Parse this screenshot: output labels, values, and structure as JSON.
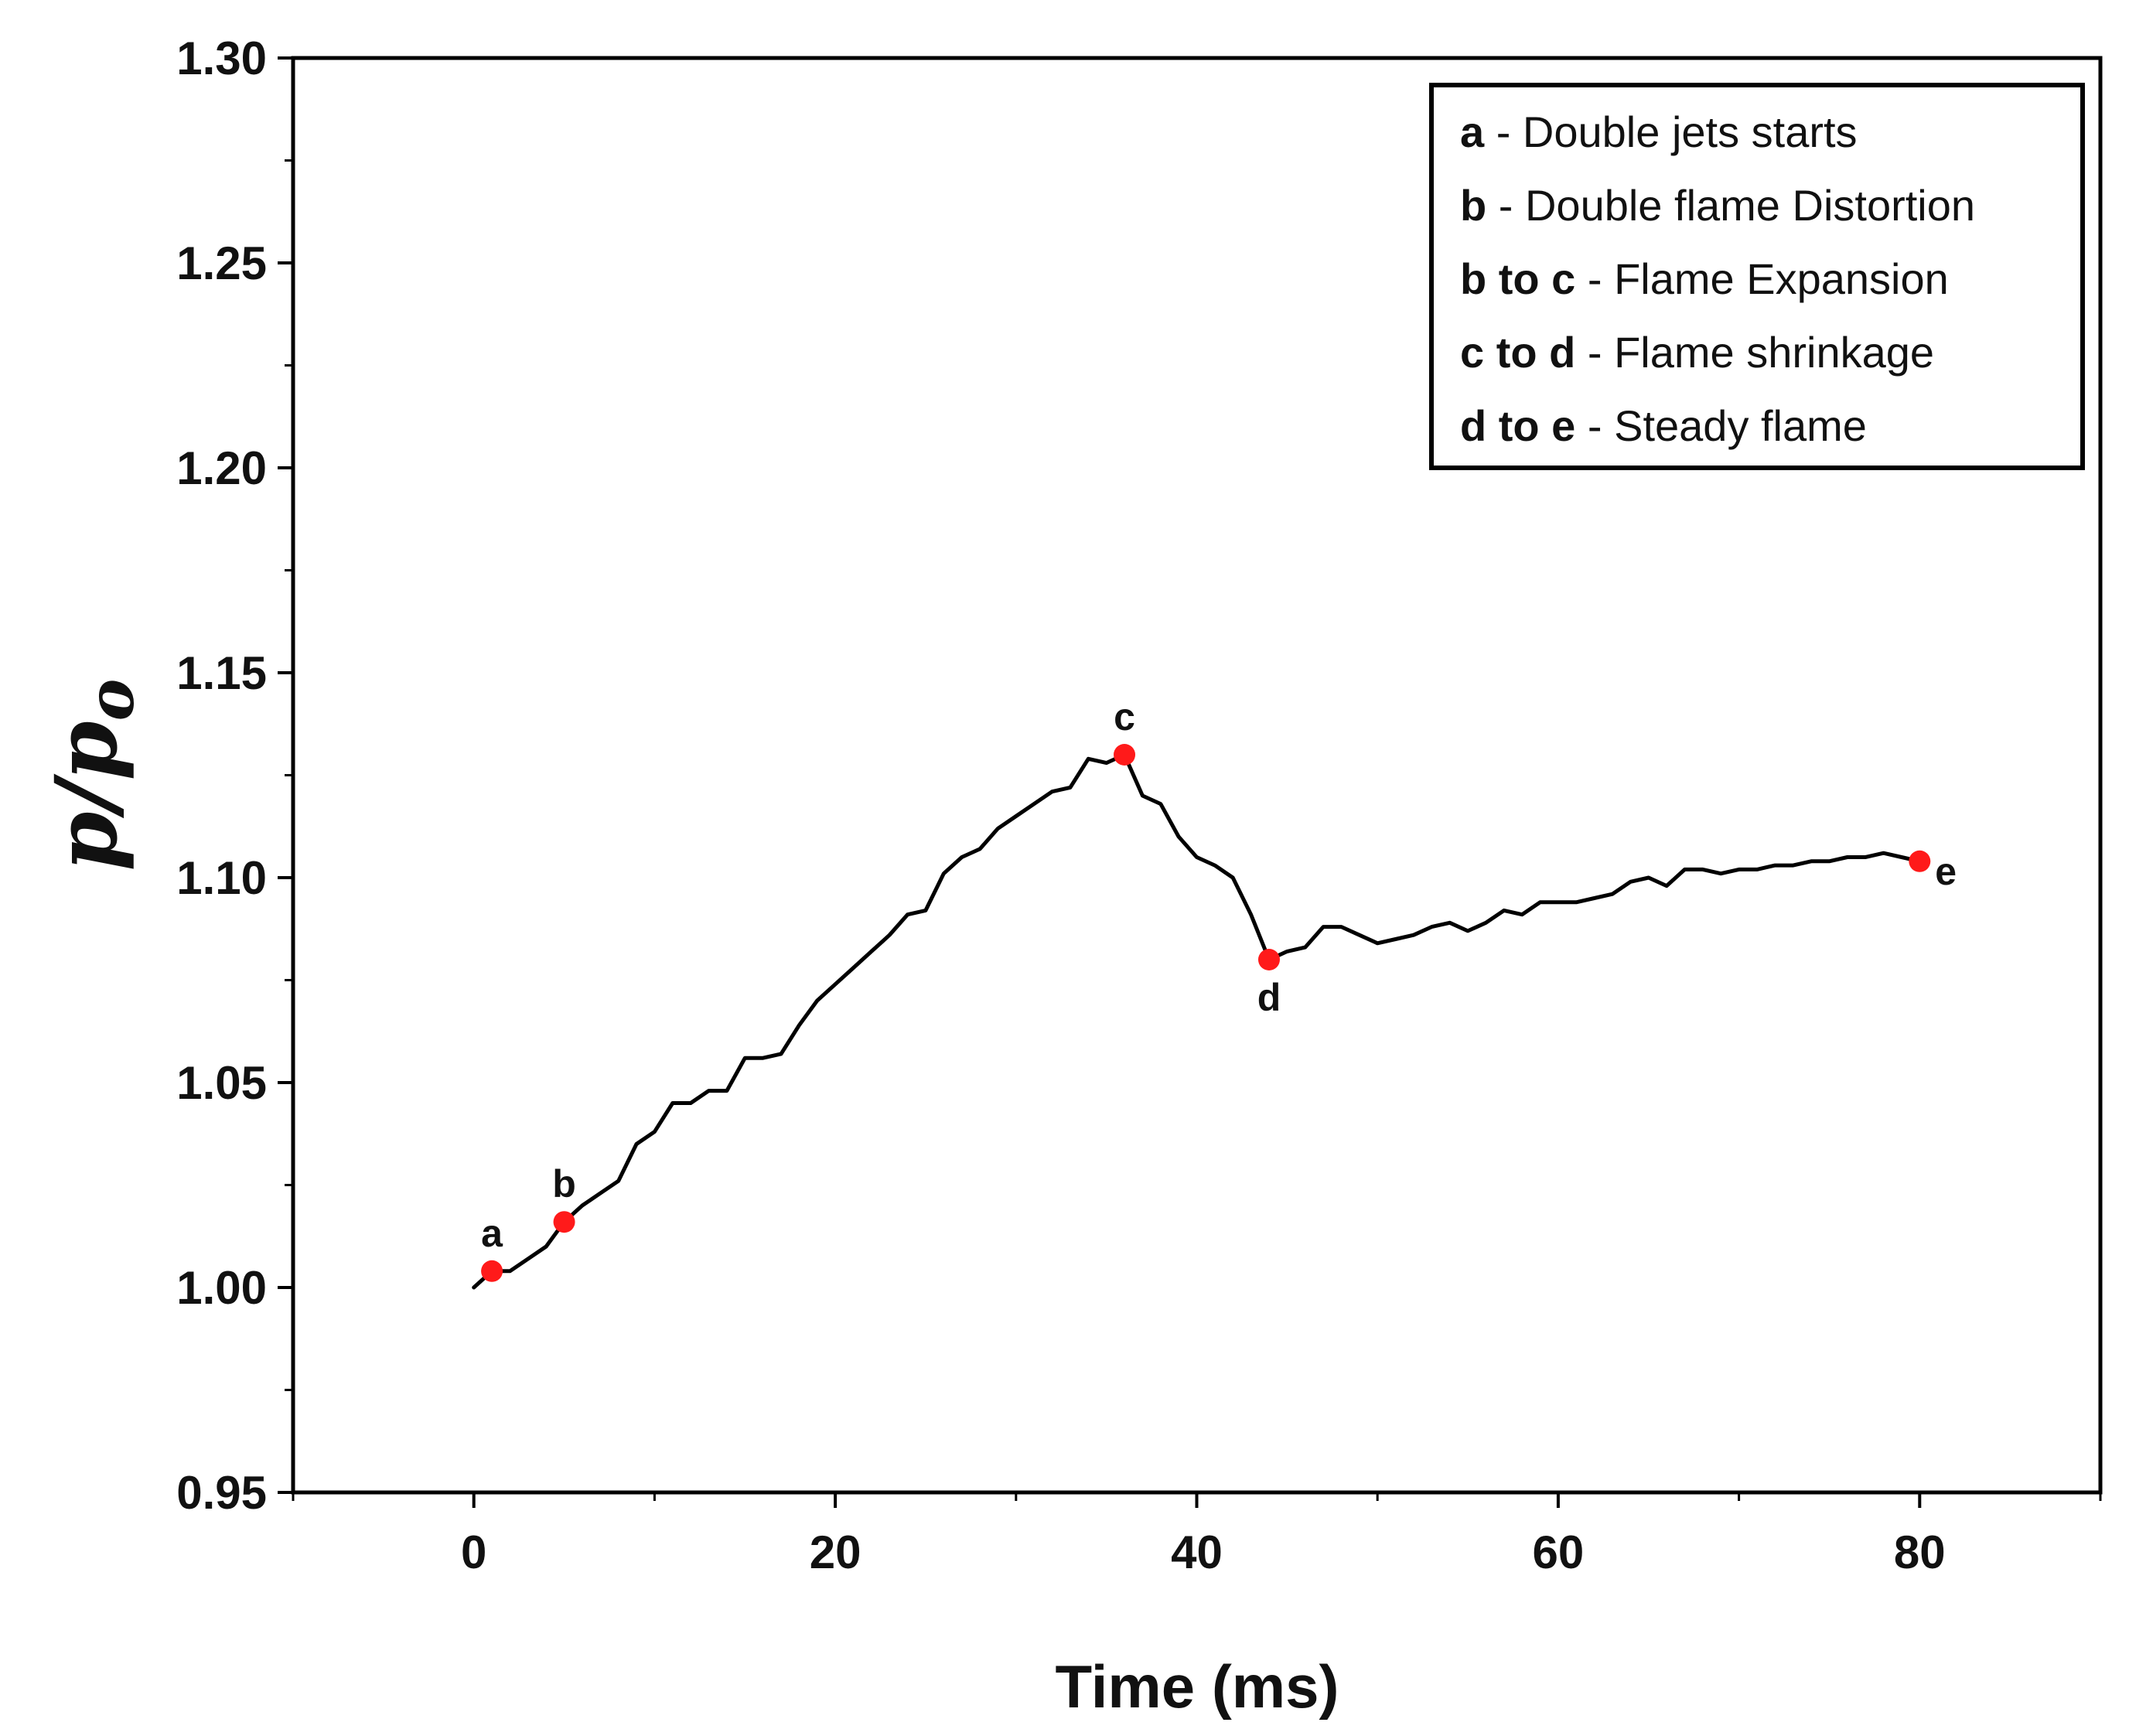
{
  "chart_data": {
    "type": "line",
    "title": "",
    "xlabel": "Time (ms)",
    "ylabel_main": "p/p",
    "ylabel_sub": "o",
    "xlim": [
      -10,
      90
    ],
    "ylim": [
      0.95,
      1.3
    ],
    "xticks": [
      0,
      20,
      40,
      60,
      80
    ],
    "xtick_labels": [
      "0",
      "20",
      "40",
      "60",
      "80"
    ],
    "yticks": [
      0.95,
      1.0,
      1.05,
      1.1,
      1.15,
      1.2,
      1.25,
      1.3
    ],
    "ytick_labels": [
      "0.95",
      "1.00",
      "1.05",
      "1.10",
      "1.15",
      "1.20",
      "1.25",
      "1.30"
    ],
    "series": [
      {
        "name": "p/po",
        "color": "#000000",
        "x": [
          0,
          1,
          2,
          3,
          4,
          5,
          6,
          7,
          8,
          9,
          10,
          11,
          12,
          13,
          14,
          15,
          16,
          17,
          18,
          19,
          20,
          21,
          22,
          23,
          24,
          25,
          26,
          27,
          28,
          29,
          30,
          31,
          32,
          33,
          34,
          35,
          36,
          37,
          38,
          39,
          40,
          41,
          42,
          43,
          44,
          45,
          46,
          47,
          48,
          49,
          50,
          51,
          52,
          53,
          54,
          55,
          56,
          57,
          58,
          59,
          60,
          61,
          62,
          63,
          64,
          65,
          66,
          67,
          68,
          69,
          70,
          71,
          72,
          73,
          74,
          75,
          76,
          77,
          78,
          79,
          80
        ],
        "y": [
          1.0,
          1.004,
          1.004,
          1.007,
          1.01,
          1.016,
          1.02,
          1.023,
          1.026,
          1.035,
          1.038,
          1.045,
          1.045,
          1.048,
          1.048,
          1.056,
          1.056,
          1.057,
          1.064,
          1.07,
          1.074,
          1.078,
          1.082,
          1.086,
          1.091,
          1.092,
          1.101,
          1.105,
          1.107,
          1.112,
          1.115,
          1.118,
          1.121,
          1.122,
          1.129,
          1.128,
          1.13,
          1.12,
          1.118,
          1.11,
          1.105,
          1.103,
          1.1,
          1.091,
          1.08,
          1.082,
          1.083,
          1.088,
          1.088,
          1.086,
          1.084,
          1.085,
          1.086,
          1.088,
          1.089,
          1.087,
          1.089,
          1.092,
          1.091,
          1.094,
          1.094,
          1.094,
          1.095,
          1.096,
          1.099,
          1.1,
          1.098,
          1.102,
          1.102,
          1.101,
          1.102,
          1.102,
          1.103,
          1.103,
          1.104,
          1.104,
          1.105,
          1.105,
          1.106,
          1.105,
          1.104
        ]
      }
    ],
    "markers": [
      {
        "label": "a",
        "x": 1,
        "y": 1.004,
        "label_pos": "above",
        "color": "#ff1a1a"
      },
      {
        "label": "b",
        "x": 5,
        "y": 1.016,
        "label_pos": "above",
        "color": "#ff1a1a"
      },
      {
        "label": "c",
        "x": 36,
        "y": 1.13,
        "label_pos": "above",
        "color": "#ff1a1a"
      },
      {
        "label": "d",
        "x": 44,
        "y": 1.08,
        "label_pos": "below",
        "color": "#ff1a1a"
      },
      {
        "label": "e",
        "x": 80,
        "y": 1.104,
        "label_pos": "right",
        "color": "#ff1a1a"
      }
    ],
    "legend": {
      "placement": "top-right",
      "entries": [
        {
          "key": "a",
          "text": " - Double jets starts"
        },
        {
          "key": "b",
          "text": " - Double flame Distortion"
        },
        {
          "key": "b to c",
          "text": " - Flame Expansion"
        },
        {
          "key": "c to d",
          "text": " - Flame shrinkage"
        },
        {
          "key": "d to e",
          "text": " -  Steady flame"
        }
      ]
    },
    "grid": false
  }
}
